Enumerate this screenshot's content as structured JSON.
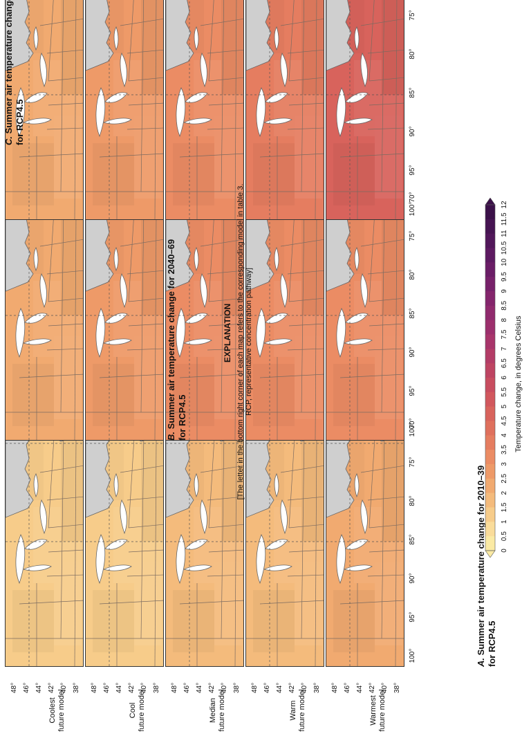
{
  "panels": [
    {
      "letter": "A.",
      "title_line1": "Summer air temperature change for 2010–39",
      "title_line2": "for RCP4.5",
      "models": [
        "T",
        "S",
        "Q",
        "O",
        "D"
      ],
      "tint": [
        1.0,
        1.2,
        1.5,
        1.8,
        2.2
      ]
    },
    {
      "letter": "B.",
      "title_line1": "Summer air temperature change for 2040–69",
      "title_line2": "for RCP4.5",
      "models": [
        "G",
        "C",
        "J",
        "D",
        "I"
      ],
      "tint": [
        2.0,
        2.5,
        3.0,
        3.4,
        3.3
      ]
    },
    {
      "letter": "C.",
      "title_line1": "Summer air temperature change for 2070–99",
      "title_line2": "for RCP4.5",
      "models": [
        "G",
        "S",
        "J",
        "A",
        "I"
      ],
      "tint": [
        2.3,
        2.6,
        3.3,
        3.7,
        4.8
      ]
    }
  ],
  "rows": [
    {
      "line1": "Coolest",
      "line2": "future model"
    },
    {
      "line1": "Cool",
      "line2": "future model"
    },
    {
      "line1": "Median",
      "line2": "future model"
    },
    {
      "line1": "Warm",
      "line2": "future model"
    },
    {
      "line1": "Warmest",
      "line2": "future model"
    }
  ],
  "latitudes": [
    "48°",
    "46°",
    "44°",
    "42°",
    "40°",
    "38°"
  ],
  "longitudes": [
    "100°",
    "95°",
    "90°",
    "85°",
    "80°",
    "75°",
    "70°"
  ],
  "legend": {
    "title": "EXPLANATION",
    "note_line1": "[The letter in the bottom right corner of each map refers to the corresponding model in table 3.",
    "note_line2": "RCP, representative concentration pathway]",
    "axis_label": "Temperature change, in degrees Celsius",
    "ticks": [
      "0",
      "0.5",
      "1",
      "1.5",
      "2",
      "2.5",
      "3",
      "3.5",
      "4",
      "4.5",
      "5",
      "5.5",
      "6",
      "6.5",
      "7",
      "7.5",
      "8",
      "8.5",
      "9",
      "9.5",
      "10",
      "10.5",
      "11",
      "11.5",
      "12"
    ],
    "colors": [
      "#fbeaa4",
      "#fadc9a",
      "#f7cc8a",
      "#f4bb7c",
      "#f1aa70",
      "#ee9a68",
      "#eb8c64",
      "#e57d60",
      "#df705d",
      "#d8635c",
      "#d1575d",
      "#c84d5f",
      "#be4462",
      "#b33c66",
      "#a8356a",
      "#9c2f6c",
      "#902a6d",
      "#84256c",
      "#77216a",
      "#6a1d66",
      "#5d1a61",
      "#51175a",
      "#461452",
      "#3b1149"
    ]
  }
}
